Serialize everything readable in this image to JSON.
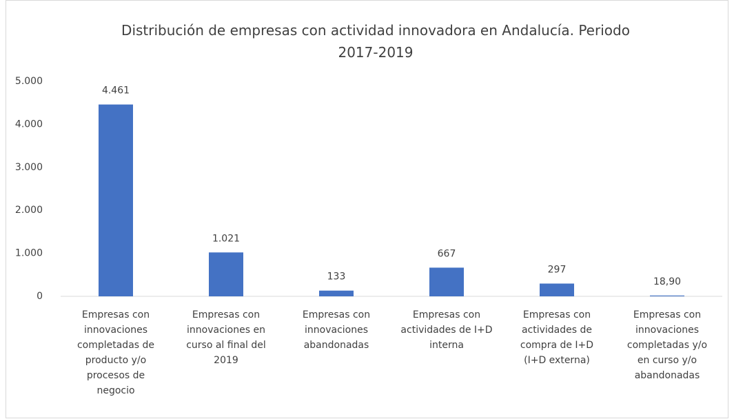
{
  "chart_data": {
    "type": "bar",
    "title": "Distribución de empresas con actividad innovadora en Andalucía. Periodo 2017-2019",
    "categories": [
      "Empresas con innovaciones completadas de producto y/o procesos de negocio",
      "Empresas con innovaciones en curso al final del 2019",
      "Empresas con innovaciones abandonadas",
      "Empresas con actividades de I+D interna",
      "Empresas con actividades de compra de I+D (I+D externa)",
      "Empresas con innovaciones completadas y/o en curso y/o abandonadas"
    ],
    "values": [
      4461,
      1021,
      133,
      667,
      297,
      18.9
    ],
    "value_labels": [
      "4.461",
      "1.021",
      "133",
      "667",
      "297",
      "18,90"
    ],
    "color": "#4472c4",
    "ylim": [
      0,
      5000
    ],
    "yticks": [
      0,
      {
        "value": 1000,
        "label": "1.000"
      },
      {
        "value": 2000,
        "label": "2.000"
      },
      {
        "value": 3000,
        "label": "3.000"
      },
      {
        "value": 4000,
        "label": "4.000"
      },
      {
        "value": 5000,
        "label": "5.000"
      }
    ],
    "grid": false
  }
}
